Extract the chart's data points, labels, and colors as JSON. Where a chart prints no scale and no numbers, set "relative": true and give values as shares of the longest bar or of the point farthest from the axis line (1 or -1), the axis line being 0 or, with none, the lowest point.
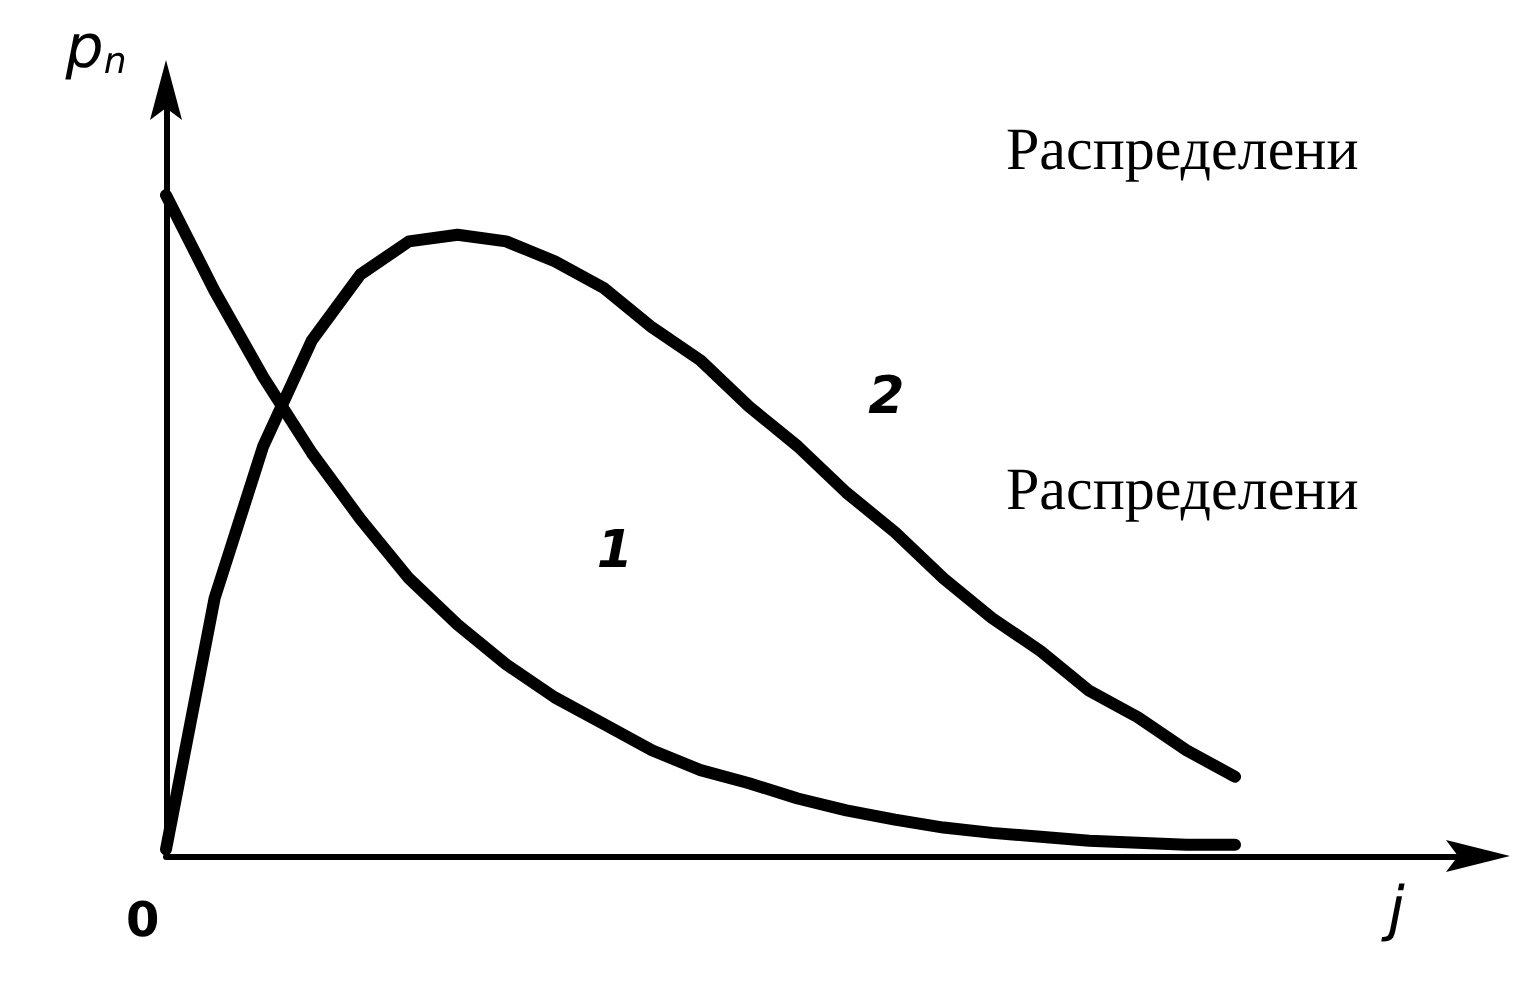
{
  "chart_data": {
    "type": "line",
    "relative": true,
    "xlabel": "j",
    "ylabel": "p$_{n}$",
    "categories": [
      null,
      null,
      null,
      null,
      null,
      null,
      null,
      null,
      null,
      null,
      null,
      null,
      null,
      null,
      null,
      null,
      null,
      null,
      null,
      null,
      null,
      null,
      null
    ],
    "series": [
      {
        "name": "1",
        "color": "#000000",
        "values": [
          1.0,
          0.855,
          0.725,
          0.61,
          0.51,
          0.42,
          0.35,
          0.29,
          0.24,
          0.2,
          0.16,
          0.13,
          0.11,
          0.087,
          0.069,
          0.055,
          0.043,
          0.035,
          0.029,
          0.023,
          0.02,
          0.017,
          0.017
        ]
      },
      {
        "name": "2",
        "color": "#000000",
        "values": [
          0.01,
          0.39,
          0.62,
          0.78,
          0.88,
          0.93,
          0.94,
          0.93,
          0.9,
          0.86,
          0.8,
          0.75,
          0.68,
          0.62,
          0.55,
          0.49,
          0.42,
          0.36,
          0.31,
          0.25,
          0.21,
          0.16,
          0.12
        ]
      }
    ],
    "annotations": [
      "0",
      "Распределени",
      "Распределени"
    ],
    "grid": false,
    "legend": false,
    "marker": "none",
    "line_style": "solid"
  }
}
